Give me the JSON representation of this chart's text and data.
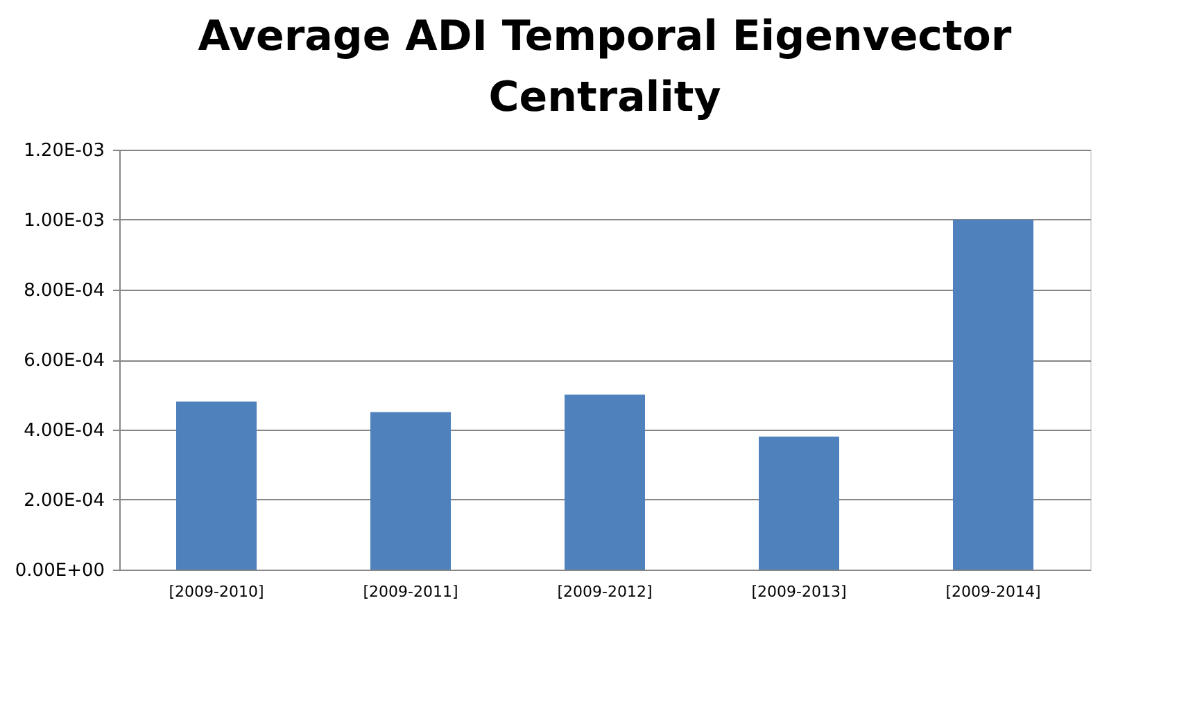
{
  "chart_data": {
    "type": "bar",
    "title": "Average ADI Temporal Eigenvector Centrality",
    "categories": [
      "[2009-2010]",
      "[2009-2011]",
      "[2009-2012]",
      "[2009-2013]",
      "[2009-2014]"
    ],
    "values": [
      0.00048,
      0.00045,
      0.0005,
      0.00038,
      0.001
    ],
    "color": "#4f81bd",
    "ylim": [
      0,
      0.0012
    ],
    "yticks": [
      {
        "value": 0,
        "label": "0.00E+00"
      },
      {
        "value": 0.0002,
        "label": "2.00E-04"
      },
      {
        "value": 0.0004,
        "label": "4.00E-04"
      },
      {
        "value": 0.0006,
        "label": "6.00E-04"
      },
      {
        "value": 0.0008,
        "label": "8.00E-04"
      },
      {
        "value": 0.001,
        "label": "1.00E-03"
      },
      {
        "value": 0.0012,
        "label": "1.20E-03"
      }
    ],
    "grid": "y"
  }
}
